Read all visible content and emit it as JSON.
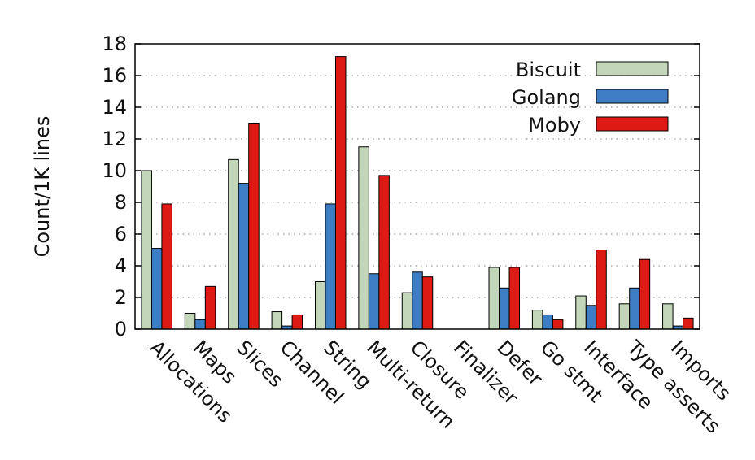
{
  "chart_data": {
    "type": "bar",
    "ylabel": "Count/1K lines",
    "ylim": [
      0,
      18
    ],
    "yticks": [
      0,
      2,
      4,
      6,
      8,
      10,
      12,
      14,
      16,
      18
    ],
    "grid": "horizontal dotted",
    "legend_position": "top-right",
    "categories": [
      "Allocations",
      "Maps",
      "Slices",
      "Channel",
      "String",
      "Multi-return",
      "Closure",
      "Finalizer",
      "Defer",
      "Go stmt",
      "Interface",
      "Type asserts",
      "Imports"
    ],
    "series": [
      {
        "name": "Biscuit",
        "color": "#c3d6b9",
        "values": [
          10.0,
          1.0,
          10.7,
          1.1,
          3.0,
          11.5,
          2.3,
          0.0,
          3.9,
          1.2,
          2.1,
          1.6,
          1.6
        ]
      },
      {
        "name": "Golang",
        "color": "#3d7dc4",
        "values": [
          5.1,
          0.6,
          9.2,
          0.2,
          7.9,
          3.5,
          3.6,
          0.0,
          2.6,
          0.9,
          1.5,
          2.6,
          0.2
        ]
      },
      {
        "name": "Moby",
        "color": "#dd1a14",
        "values": [
          7.9,
          2.7,
          13.0,
          0.9,
          17.2,
          9.7,
          3.3,
          0.0,
          3.9,
          0.6,
          5.0,
          4.4,
          0.7
        ]
      }
    ]
  }
}
